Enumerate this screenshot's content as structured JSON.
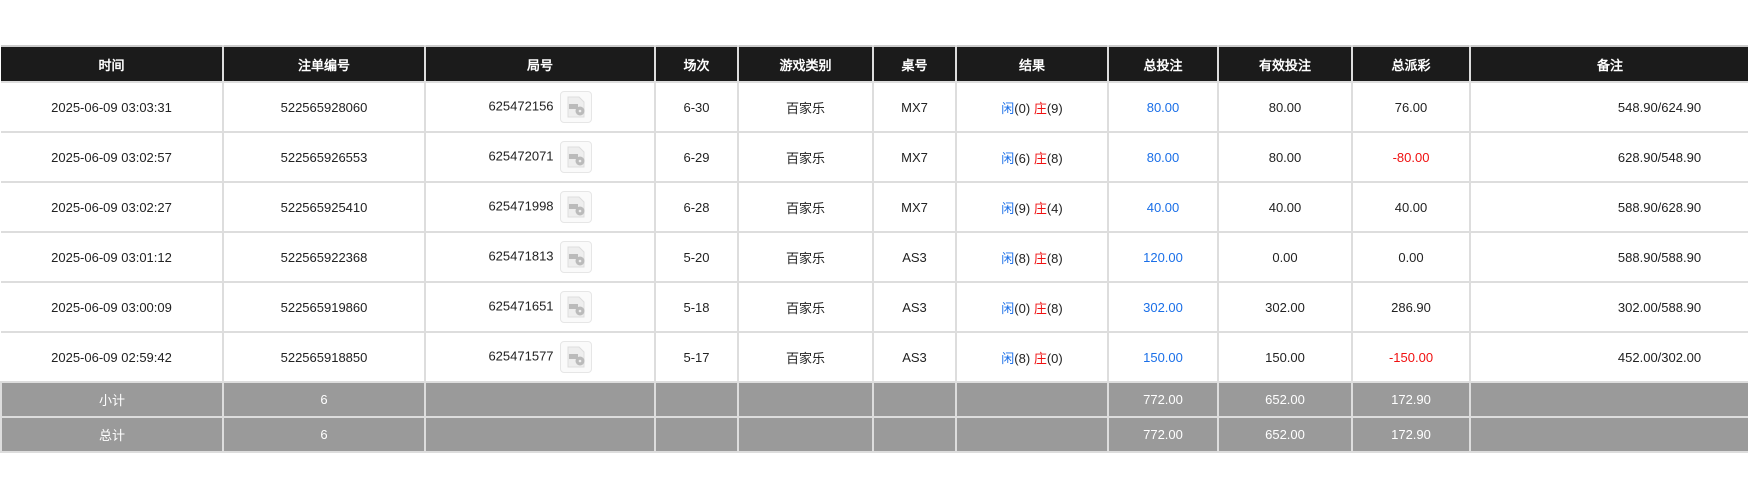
{
  "headers": [
    "时间",
    "注单编号",
    "局号",
    "场次",
    "游戏类别",
    "桌号",
    "结果",
    "总投注",
    "有效投注",
    "总派彩",
    "备注"
  ],
  "colors": {
    "player": "#1a6fe8",
    "banker": "#f01010",
    "negative": "#f01010",
    "total_bet": "#1a6fe8"
  },
  "rows": [
    {
      "time": "2025-06-09 03:03:31",
      "bet_id": "522565928060",
      "round": "625472156",
      "shoe": "6-30",
      "game": "百家乐",
      "table": "MX7",
      "player": "闲",
      "player_pts": "(0)",
      "banker": "庄",
      "banker_pts": "(9)",
      "total": "80.00",
      "valid": "80.00",
      "payout": "76.00",
      "remark": "548.90/624.90"
    },
    {
      "time": "2025-06-09 03:02:57",
      "bet_id": "522565926553",
      "round": "625472071",
      "shoe": "6-29",
      "game": "百家乐",
      "table": "MX7",
      "player": "闲",
      "player_pts": "(6)",
      "banker": "庄",
      "banker_pts": "(8)",
      "total": "80.00",
      "valid": "80.00",
      "payout": "-80.00",
      "remark": "628.90/548.90"
    },
    {
      "time": "2025-06-09 03:02:27",
      "bet_id": "522565925410",
      "round": "625471998",
      "shoe": "6-28",
      "game": "百家乐",
      "table": "MX7",
      "player": "闲",
      "player_pts": "(9)",
      "banker": "庄",
      "banker_pts": "(4)",
      "total": "40.00",
      "valid": "40.00",
      "payout": "40.00",
      "remark": "588.90/628.90"
    },
    {
      "time": "2025-06-09 03:01:12",
      "bet_id": "522565922368",
      "round": "625471813",
      "shoe": "5-20",
      "game": "百家乐",
      "table": "AS3",
      "player": "闲",
      "player_pts": "(8)",
      "banker": "庄",
      "banker_pts": "(8)",
      "total": "120.00",
      "valid": "0.00",
      "payout": "0.00",
      "remark": "588.90/588.90"
    },
    {
      "time": "2025-06-09 03:00:09",
      "bet_id": "522565919860",
      "round": "625471651",
      "shoe": "5-18",
      "game": "百家乐",
      "table": "AS3",
      "player": "闲",
      "player_pts": "(0)",
      "banker": "庄",
      "banker_pts": "(8)",
      "total": "302.00",
      "valid": "302.00",
      "payout": "286.90",
      "remark": "302.00/588.90"
    },
    {
      "time": "2025-06-09 02:59:42",
      "bet_id": "522565918850",
      "round": "625471577",
      "shoe": "5-17",
      "game": "百家乐",
      "table": "AS3",
      "player": "闲",
      "player_pts": "(8)",
      "banker": "庄",
      "banker_pts": "(0)",
      "total": "150.00",
      "valid": "150.00",
      "payout": "-150.00",
      "remark": "452.00/302.00"
    }
  ],
  "subtotal": {
    "label": "小计",
    "count": "6",
    "total": "772.00",
    "valid": "652.00",
    "payout": "172.90"
  },
  "grandtotal": {
    "label": "总计",
    "count": "6",
    "total": "772.00",
    "valid": "652.00",
    "payout": "172.90"
  }
}
